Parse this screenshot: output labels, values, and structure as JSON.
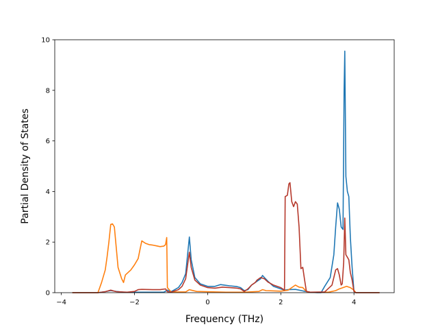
{
  "chart_data": {
    "type": "line",
    "title": "",
    "xlabel": "Frequency (THz)",
    "ylabel": "Partial Density of States",
    "xlim": [
      -4.18,
      5.1
    ],
    "ylim": [
      0,
      10
    ],
    "xticks": [
      -4,
      -2,
      0,
      2,
      4
    ],
    "yticks": [
      0,
      2,
      4,
      6,
      8,
      10
    ],
    "grid": false,
    "legend": "none",
    "series": [
      {
        "color": "#1f77b4",
        "points": [
          [
            -3.7,
            0
          ],
          [
            -3.0,
            0
          ],
          [
            -2.8,
            0.04
          ],
          [
            -2.65,
            0.08
          ],
          [
            -2.5,
            0.05
          ],
          [
            -2.3,
            0.02
          ],
          [
            -1.2,
            0.02
          ],
          [
            -1.1,
            0.1
          ],
          [
            -1.0,
            0.04
          ],
          [
            -0.8,
            0.2
          ],
          [
            -0.7,
            0.4
          ],
          [
            -0.6,
            0.75
          ],
          [
            -0.5,
            2.2
          ],
          [
            -0.45,
            1.3
          ],
          [
            -0.35,
            0.6
          ],
          [
            -0.2,
            0.35
          ],
          [
            0,
            0.25
          ],
          [
            0.2,
            0.25
          ],
          [
            0.35,
            0.32
          ],
          [
            0.45,
            0.3
          ],
          [
            0.6,
            0.27
          ],
          [
            0.8,
            0.24
          ],
          [
            0.9,
            0.2
          ],
          [
            1.0,
            0.08
          ],
          [
            1.1,
            0.12
          ],
          [
            1.2,
            0.3
          ],
          [
            1.35,
            0.45
          ],
          [
            1.45,
            0.55
          ],
          [
            1.5,
            0.68
          ],
          [
            1.55,
            0.6
          ],
          [
            1.65,
            0.45
          ],
          [
            1.8,
            0.25
          ],
          [
            2.0,
            0.15
          ],
          [
            2.1,
            0.1
          ],
          [
            2.2,
            0.12
          ],
          [
            2.4,
            0.13
          ],
          [
            2.6,
            0.07
          ],
          [
            2.8,
            0.02
          ],
          [
            3.0,
            0.0
          ],
          [
            3.1,
            0.0
          ],
          [
            3.2,
            0.25
          ],
          [
            3.35,
            0.6
          ],
          [
            3.45,
            1.5
          ],
          [
            3.5,
            2.6
          ],
          [
            3.55,
            3.55
          ],
          [
            3.6,
            3.3
          ],
          [
            3.65,
            2.6
          ],
          [
            3.7,
            2.5
          ],
          [
            3.73,
            8.0
          ],
          [
            3.75,
            9.55
          ],
          [
            3.78,
            4.6
          ],
          [
            3.82,
            4.0
          ],
          [
            3.86,
            3.8
          ],
          [
            3.9,
            2.2
          ],
          [
            3.95,
            1.0
          ],
          [
            4.0,
            0.05
          ],
          [
            4.05,
            0
          ],
          [
            4.7,
            0
          ]
        ]
      },
      {
        "color": "#ff7f0e",
        "points": [
          [
            -3.7,
            0
          ],
          [
            -3.0,
            0
          ],
          [
            -2.9,
            0.4
          ],
          [
            -2.8,
            0.9
          ],
          [
            -2.75,
            1.4
          ],
          [
            -2.7,
            2.0
          ],
          [
            -2.65,
            2.7
          ],
          [
            -2.6,
            2.72
          ],
          [
            -2.55,
            2.6
          ],
          [
            -2.5,
            1.8
          ],
          [
            -2.45,
            1.0
          ],
          [
            -2.35,
            0.55
          ],
          [
            -2.3,
            0.4
          ],
          [
            -2.25,
            0.7
          ],
          [
            -2.1,
            0.9
          ],
          [
            -2.0,
            1.1
          ],
          [
            -1.9,
            1.35
          ],
          [
            -1.85,
            1.7
          ],
          [
            -1.8,
            2.05
          ],
          [
            -1.7,
            1.95
          ],
          [
            -1.6,
            1.9
          ],
          [
            -1.5,
            1.88
          ],
          [
            -1.4,
            1.85
          ],
          [
            -1.3,
            1.82
          ],
          [
            -1.2,
            1.84
          ],
          [
            -1.15,
            1.9
          ],
          [
            -1.12,
            2.18
          ],
          [
            -1.1,
            0.2
          ],
          [
            -1.0,
            0.03
          ],
          [
            -0.6,
            0.03
          ],
          [
            -0.5,
            0.12
          ],
          [
            -0.45,
            0.1
          ],
          [
            -0.3,
            0.05
          ],
          [
            0.5,
            0.02
          ],
          [
            1.0,
            0.02
          ],
          [
            1.4,
            0.05
          ],
          [
            1.5,
            0.12
          ],
          [
            1.6,
            0.08
          ],
          [
            2.0,
            0.06
          ],
          [
            2.2,
            0.1
          ],
          [
            2.3,
            0.2
          ],
          [
            2.4,
            0.3
          ],
          [
            2.5,
            0.22
          ],
          [
            2.6,
            0.2
          ],
          [
            2.7,
            0.05
          ],
          [
            2.8,
            0.02
          ],
          [
            3.3,
            0.02
          ],
          [
            3.5,
            0.08
          ],
          [
            3.6,
            0.15
          ],
          [
            3.7,
            0.2
          ],
          [
            3.8,
            0.25
          ],
          [
            3.9,
            0.2
          ],
          [
            4.0,
            0.1
          ],
          [
            4.05,
            0
          ],
          [
            4.7,
            0
          ]
        ]
      },
      {
        "color": "#b5382b",
        "points": [
          [
            -3.7,
            0
          ],
          [
            -3.0,
            0
          ],
          [
            -2.8,
            0.04
          ],
          [
            -2.65,
            0.1
          ],
          [
            -2.5,
            0.04
          ],
          [
            -2.2,
            0.02
          ],
          [
            -2.0,
            0.05
          ],
          [
            -1.9,
            0.12
          ],
          [
            -1.8,
            0.13
          ],
          [
            -1.5,
            0.12
          ],
          [
            -1.3,
            0.12
          ],
          [
            -1.15,
            0.15
          ],
          [
            -1.1,
            0.04
          ],
          [
            -1.0,
            0.02
          ],
          [
            -0.8,
            0.12
          ],
          [
            -0.7,
            0.25
          ],
          [
            -0.6,
            0.55
          ],
          [
            -0.5,
            1.6
          ],
          [
            -0.45,
            1.0
          ],
          [
            -0.35,
            0.5
          ],
          [
            -0.2,
            0.3
          ],
          [
            0,
            0.2
          ],
          [
            0.2,
            0.18
          ],
          [
            0.4,
            0.22
          ],
          [
            0.6,
            0.2
          ],
          [
            0.8,
            0.18
          ],
          [
            0.9,
            0.15
          ],
          [
            1.0,
            0.05
          ],
          [
            1.1,
            0.15
          ],
          [
            1.2,
            0.3
          ],
          [
            1.3,
            0.4
          ],
          [
            1.35,
            0.5
          ],
          [
            1.45,
            0.6
          ],
          [
            1.55,
            0.55
          ],
          [
            1.65,
            0.42
          ],
          [
            1.8,
            0.3
          ],
          [
            2.0,
            0.2
          ],
          [
            2.1,
            0.1
          ],
          [
            2.12,
            3.8
          ],
          [
            2.18,
            3.85
          ],
          [
            2.22,
            4.3
          ],
          [
            2.25,
            4.35
          ],
          [
            2.3,
            3.6
          ],
          [
            2.35,
            3.4
          ],
          [
            2.4,
            3.6
          ],
          [
            2.45,
            3.5
          ],
          [
            2.5,
            2.6
          ],
          [
            2.55,
            0.95
          ],
          [
            2.6,
            1.0
          ],
          [
            2.65,
            0.5
          ],
          [
            2.7,
            0.05
          ],
          [
            2.8,
            0.02
          ],
          [
            3.2,
            0.03
          ],
          [
            3.4,
            0.3
          ],
          [
            3.5,
            0.9
          ],
          [
            3.55,
            0.95
          ],
          [
            3.6,
            0.7
          ],
          [
            3.65,
            0.3
          ],
          [
            3.68,
            0.35
          ],
          [
            3.72,
            1.2
          ],
          [
            3.75,
            2.95
          ],
          [
            3.78,
            1.5
          ],
          [
            3.82,
            1.4
          ],
          [
            3.86,
            1.3
          ],
          [
            3.9,
            0.8
          ],
          [
            3.95,
            0.5
          ],
          [
            4.0,
            0.05
          ],
          [
            4.05,
            0
          ],
          [
            4.7,
            0
          ]
        ]
      }
    ]
  }
}
